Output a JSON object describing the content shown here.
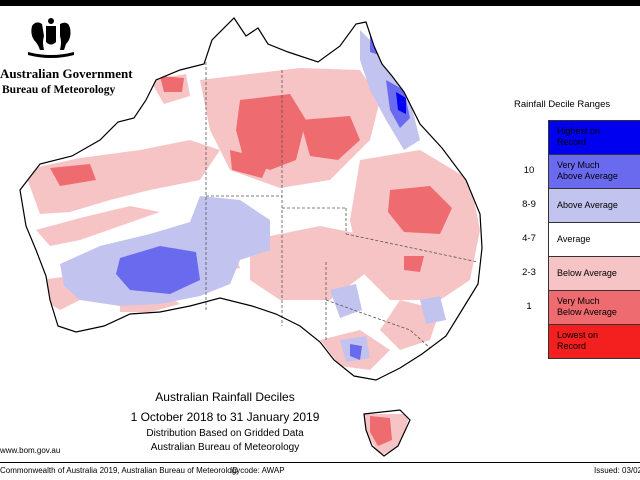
{
  "header": {
    "government": "Australian Government",
    "agency": "Bureau of Meteorology"
  },
  "icons": {
    "crest": "coat-of-arms-icon"
  },
  "legend": {
    "title": "Rainfall Decile Ranges",
    "items": [
      {
        "range": "",
        "label_lines": [
          "Highest on",
          "Record"
        ],
        "color": "#0000f0"
      },
      {
        "range": "10",
        "label_lines": [
          "Very Much",
          "Above Average"
        ],
        "color": "#6a6aee"
      },
      {
        "range": "8-9",
        "label_lines": [
          "Above Average"
        ],
        "color": "#c3c3ef"
      },
      {
        "range": "4-7",
        "label_lines": [
          "Average"
        ],
        "color": "#ffffff"
      },
      {
        "range": "2-3",
        "label_lines": [
          "Below Average"
        ],
        "color": "#f7c4c6"
      },
      {
        "range": "1",
        "label_lines": [
          "Very Much",
          "Below Average"
        ],
        "color": "#ee6b6f"
      },
      {
        "range": "",
        "label_lines": [
          "Lowest on",
          "Record"
        ],
        "color": "#f41f1f"
      }
    ]
  },
  "caption": {
    "title": "Australian Rainfall Deciles",
    "period": "1 October 2018 to 31 January 2019",
    "basis": "Distribution Based on Gridded Data",
    "source": "Australian Bureau of Meteorology"
  },
  "footer": {
    "url": "www.bom.gov.au",
    "copyright": "Commonwealth of Australia 2019, Australian Bureau of Meteorology",
    "id_code": "ID code: AWAP",
    "issued": "Issued: 03/02"
  }
}
